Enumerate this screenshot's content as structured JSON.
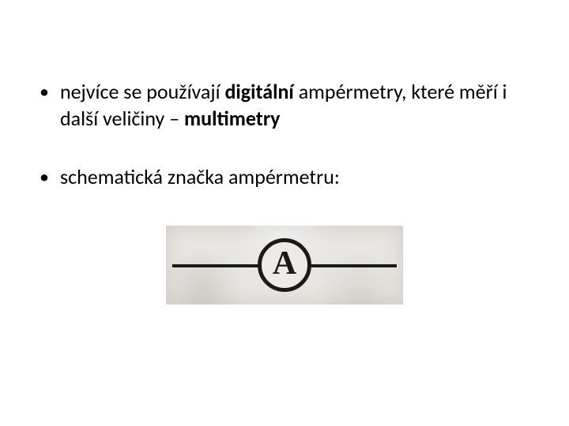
{
  "slide": {
    "bullets": [
      {
        "prefix": "nejvíce se používají ",
        "bold1": "digitální",
        "mid": " ampérmetry, které měří i další veličiny – ",
        "bold2": "multimetry"
      },
      {
        "text": "schematická značka ampérmetru:"
      }
    ],
    "diagram": {
      "type": "circuit-symbol",
      "letter": "A",
      "circle_stroke": "#1a1a1a",
      "circle_stroke_width": 5,
      "wire_color": "#1a1a1a",
      "wire_thickness": 4,
      "background_color": "#e8e6e2",
      "letter_font": "Times New Roman",
      "letter_fontsize": 42,
      "letter_weight": "bold"
    },
    "styling": {
      "page_background": "#ffffff",
      "text_color": "#000000",
      "bullet_fontsize": 26,
      "font_family": "Calibri"
    }
  }
}
